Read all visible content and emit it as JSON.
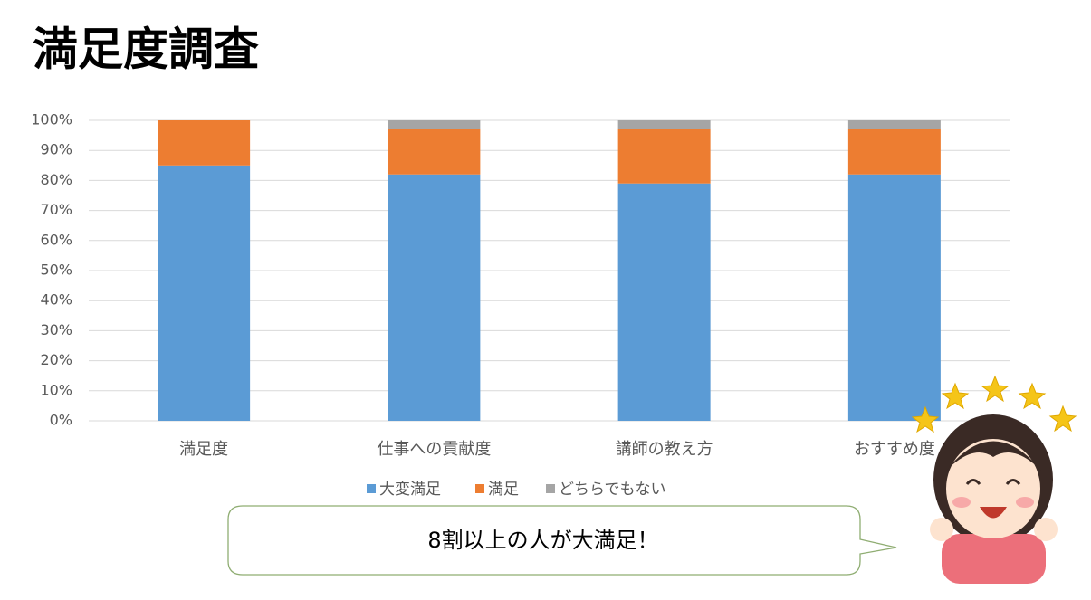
{
  "title": "満足度調査",
  "chart_data": {
    "type": "stacked-bar",
    "categories": [
      "満足度",
      "仕事への貢献度",
      "講師の教え方",
      "おすすめ度"
    ],
    "series": [
      {
        "name": "大変満足",
        "color": "#5b9bd5",
        "values": [
          85,
          82,
          79,
          82
        ]
      },
      {
        "name": "満足",
        "color": "#ed7d31",
        "values": [
          15,
          15,
          18,
          15
        ]
      },
      {
        "name": "どちらでもない",
        "color": "#a5a5a5",
        "values": [
          0,
          3,
          3,
          3
        ]
      }
    ],
    "ylim": [
      0,
      100
    ],
    "yticks": [
      {
        "value": 0,
        "label": "0%"
      },
      {
        "value": 10,
        "label": "10%"
      },
      {
        "value": 20,
        "label": "20%"
      },
      {
        "value": 30,
        "label": "30%"
      },
      {
        "value": 40,
        "label": "40%"
      },
      {
        "value": 50,
        "label": "50%"
      },
      {
        "value": 60,
        "label": "60%"
      },
      {
        "value": 70,
        "label": "70%"
      },
      {
        "value": 80,
        "label": "80%"
      },
      {
        "value": 90,
        "label": "90%"
      },
      {
        "value": 100,
        "label": "100%"
      }
    ],
    "grid": true,
    "legend": "bottom"
  },
  "callout": "8割以上の人が大満足！"
}
